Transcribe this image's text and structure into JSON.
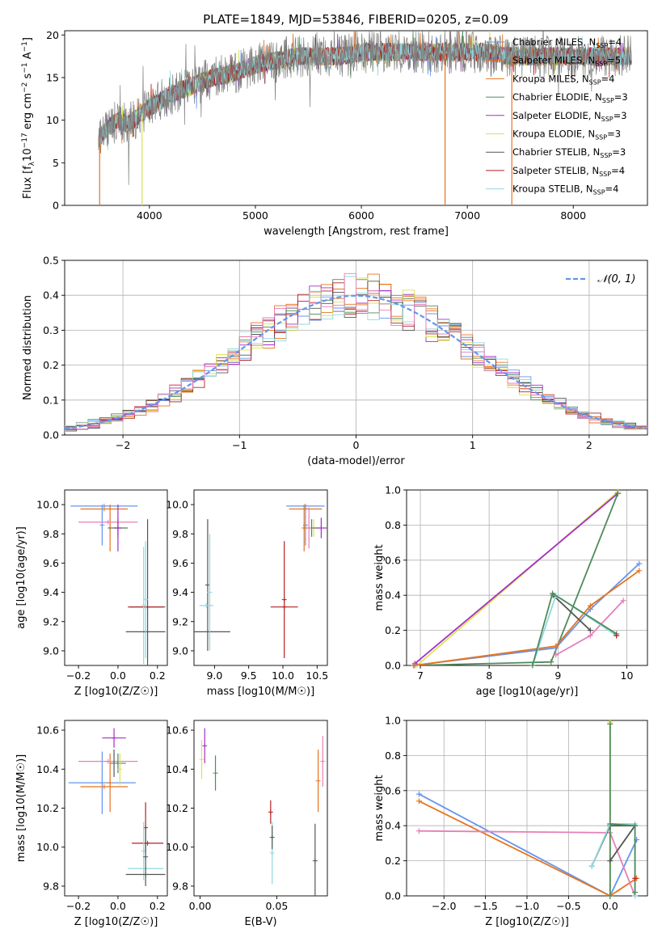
{
  "figure_title": "PLATE=1849, MJD=53846, FIBERID=0205, z=0.09",
  "colors": {
    "blue": "#6495ed",
    "orange": "#e8731d",
    "green": "#4f8a5b",
    "purple": "#a62fc9",
    "yellow": "#d8e450",
    "black": "#555555",
    "red": "#b22222",
    "cyan": "#8fd9e0",
    "pink": "#e67fb7",
    "grey": "#808080",
    "grid": "#b0b0b0"
  },
  "chart_data": [
    {
      "id": "spectrum",
      "type": "line",
      "xlabel": "wavelength [Angstrom, rest frame]",
      "ylabel": "Flux [f_λ10^-17 erg cm^-2 s^-1 A^-1]",
      "xlim": [
        3200,
        8700
      ],
      "ylim": [
        0,
        20.5
      ],
      "xticks": [
        4000,
        5000,
        6000,
        7000,
        8000
      ],
      "yticks": [
        0,
        5,
        10,
        15,
        20
      ],
      "legend_position": "top-right",
      "data_trend": {
        "x": [
          3500,
          3600,
          3700,
          3800,
          3900,
          4000,
          4200,
          4400,
          4600,
          4800,
          5000,
          5200,
          5400,
          5600,
          5800,
          6000,
          6200,
          6400,
          6600,
          6800,
          7000,
          7200,
          7400,
          7600,
          7800,
          8000
        ],
        "y": [
          7.5,
          9,
          10,
          9.5,
          10.5,
          11.5,
          13,
          14,
          15,
          15.5,
          16.5,
          17,
          17.5,
          17.5,
          17.5,
          18,
          18,
          18,
          18,
          18,
          18,
          18,
          17.5,
          17.5,
          17.5,
          17.5
        ]
      },
      "series": [
        {
          "name": "Chabrier MILES, N_SSP=4",
          "color": "blue"
        },
        {
          "name": "Salpeter MILES, N_SSP=5",
          "color": "orange"
        },
        {
          "name": "Kroupa MILES, N_SSP=4",
          "color": "orange"
        },
        {
          "name": "Chabrier ELODIE, N_SSP=3",
          "color": "green"
        },
        {
          "name": "Salpeter ELODIE, N_SSP=3",
          "color": "purple"
        },
        {
          "name": "Kroupa ELODIE, N_SSP=3",
          "color": "yellow"
        },
        {
          "name": "Chabrier STELIB, N_SSP=3",
          "color": "black"
        },
        {
          "name": "Salpeter STELIB, N_SSP=4",
          "color": "red"
        },
        {
          "name": "Kroupa STELIB, N_SSP=4",
          "color": "cyan"
        }
      ]
    },
    {
      "id": "residuals",
      "type": "line",
      "xlabel": "(data-model)/error",
      "ylabel": "Normed distribution",
      "xlim": [
        -2.5,
        2.5
      ],
      "ylim": [
        0,
        0.5
      ],
      "xticks": [
        -2,
        -1,
        0,
        1,
        2
      ],
      "yticks": [
        0.0,
        0.1,
        0.2,
        0.3,
        0.4,
        0.5
      ],
      "grid": true,
      "legend_position": "top-right",
      "legend": "N(0,1)"
    },
    {
      "id": "age_vs_Z",
      "type": "scatter",
      "xlabel": "Z [log10(Z/Z☉)]",
      "ylabel": "age [log10(age/yr)]",
      "xlim": [
        -0.27,
        0.25
      ],
      "ylim": [
        8.9,
        10.1
      ],
      "xticks": [
        -0.2,
        0.0,
        0.2
      ],
      "yticks": [
        9.0,
        9.2,
        9.4,
        9.6,
        9.8,
        10.0
      ],
      "points": [
        {
          "x": -0.07,
          "y": 9.99,
          "xerr": 0.17,
          "yerr": 0.0,
          "color": "blue"
        },
        {
          "x": -0.07,
          "y": 9.97,
          "xerr": 0.12,
          "yerr": 0.0,
          "color": "orange"
        },
        {
          "x": -0.08,
          "y": 9.86,
          "xerr": 0.0,
          "yerr": 0.14,
          "color": "blue"
        },
        {
          "x": -0.04,
          "y": 9.84,
          "xerr": 0.0,
          "yerr": 0.16,
          "color": "orange"
        },
        {
          "x": -0.05,
          "y": 9.88,
          "xerr": 0.15,
          "yerr": 0.0,
          "color": "pink"
        },
        {
          "x": 0.0,
          "y": 9.84,
          "xerr": 0.04,
          "yerr": 0.07,
          "color": "yellow"
        },
        {
          "x": 0.0,
          "y": 9.84,
          "xerr": 0.05,
          "yerr": 0.06,
          "color": "green"
        },
        {
          "x": 0.0,
          "y": 9.84,
          "xerr": 0.02,
          "yerr": 0.16,
          "color": "purple"
        },
        {
          "x": 0.15,
          "y": 9.3,
          "xerr": 0.09,
          "yerr": 0.6,
          "color": "black"
        },
        {
          "x": 0.14,
          "y": 9.3,
          "xerr": 0.09,
          "yerr": 0.0,
          "color": "red"
        },
        {
          "x": 0.13,
          "y": 9.31,
          "xerr": 0.0,
          "yerr": 0.4,
          "color": "cyan"
        },
        {
          "x": 0.14,
          "y": 9.13,
          "xerr": 0.1,
          "yerr": 0.0,
          "color": "black"
        },
        {
          "x": 0.14,
          "y": 9.35,
          "xerr": 0.0,
          "yerr": 0.4,
          "color": "cyan"
        }
      ]
    },
    {
      "id": "age_vs_mass",
      "type": "scatter",
      "xlabel": "mass [log10(M/M☉)]",
      "xlim": [
        8.7,
        10.65
      ],
      "ylim": [
        8.9,
        10.1
      ],
      "xticks": [
        9.0,
        9.5,
        10.0,
        10.5
      ],
      "yticks": [
        9.0,
        9.2,
        9.4,
        9.6,
        9.8,
        10.0
      ],
      "points": [
        {
          "x": 10.33,
          "y": 9.99,
          "xerr": 0.28,
          "yerr": 0.0,
          "color": "blue"
        },
        {
          "x": 10.33,
          "y": 9.97,
          "xerr": 0.24,
          "yerr": 0.0,
          "color": "orange"
        },
        {
          "x": 10.33,
          "y": 9.86,
          "xerr": 0.0,
          "yerr": 0.14,
          "color": "blue"
        },
        {
          "x": 10.31,
          "y": 9.84,
          "xerr": 0.0,
          "yerr": 0.16,
          "color": "orange"
        },
        {
          "x": 10.45,
          "y": 9.84,
          "xerr": 0.1,
          "yerr": 0.06,
          "color": "yellow"
        },
        {
          "x": 10.42,
          "y": 9.84,
          "xerr": 0.08,
          "yerr": 0.06,
          "color": "green"
        },
        {
          "x": 10.56,
          "y": 9.84,
          "xerr": 0.08,
          "yerr": 0.07,
          "color": "purple"
        },
        {
          "x": 10.38,
          "y": 9.84,
          "xerr": 0.0,
          "yerr": 0.14,
          "color": "pink"
        },
        {
          "x": 8.9,
          "y": 9.45,
          "xerr": 0.0,
          "yerr": 0.45,
          "color": "black"
        },
        {
          "x": 8.93,
          "y": 9.13,
          "xerr": 0.3,
          "yerr": 0.0,
          "color": "black"
        },
        {
          "x": 8.93,
          "y": 9.4,
          "xerr": 0.0,
          "yerr": 0.4,
          "color": "cyan"
        },
        {
          "x": 8.88,
          "y": 9.31,
          "xerr": 0.1,
          "yerr": 0.0,
          "color": "cyan"
        },
        {
          "x": 10.02,
          "y": 9.3,
          "xerr": 0.2,
          "yerr": 0.0,
          "color": "red"
        },
        {
          "x": 10.02,
          "y": 9.35,
          "xerr": 0.0,
          "yerr": 0.4,
          "color": "red"
        }
      ]
    },
    {
      "id": "weight_vs_age",
      "type": "line",
      "xlabel": "age [log10(age/yr)]",
      "ylabel": "mass weight",
      "xlim": [
        6.8,
        10.3
      ],
      "ylim": [
        0,
        1.0
      ],
      "xticks": [
        7,
        8,
        9,
        10
      ],
      "yticks": [
        0.0,
        0.2,
        0.4,
        0.6,
        0.8,
        1.0
      ],
      "grid": true,
      "series": [
        {
          "color": "yellow",
          "x": [
            6.95,
            9.87
          ],
          "y": [
            0.0,
            0.99
          ]
        },
        {
          "color": "purple",
          "x": [
            6.92,
            9.87
          ],
          "y": [
            0.01,
            0.98
          ]
        },
        {
          "color": "green",
          "x": [
            6.9,
            8.9,
            9.87
          ],
          "y": [
            0.0,
            0.02,
            0.98
          ]
        },
        {
          "color": "blue",
          "x": [
            6.9,
            8.97,
            9.47,
            10.18
          ],
          "y": [
            0.0,
            0.1,
            0.32,
            0.58
          ]
        },
        {
          "color": "orange",
          "x": [
            6.92,
            8.97,
            9.47,
            10.18
          ],
          "y": [
            0.0,
            0.11,
            0.34,
            0.54
          ]
        },
        {
          "color": "black",
          "x": [
            8.93,
            9.47
          ],
          "y": [
            0.4,
            0.2
          ]
        },
        {
          "color": "pink",
          "x": [
            8.97,
            9.47,
            9.95
          ],
          "y": [
            0.06,
            0.17,
            0.37
          ]
        },
        {
          "color": "cyan",
          "x": [
            8.63,
            8.97,
            9.85
          ],
          "y": [
            0.0,
            0.4,
            0.17
          ]
        },
        {
          "color": "green",
          "x": [
            8.63,
            8.92,
            9.85
          ],
          "y": [
            0.0,
            0.41,
            0.18
          ]
        },
        {
          "color": "red",
          "x": [
            9.85
          ],
          "y": [
            0.17
          ]
        }
      ]
    },
    {
      "id": "mass_vs_Z",
      "type": "scatter",
      "xlabel": "Z [log10(Z/Z☉)]",
      "ylabel": "mass [log10(M/M☉)]",
      "xlim": [
        -0.27,
        0.25
      ],
      "ylim": [
        9.75,
        10.65
      ],
      "xticks": [
        -0.2,
        0.0,
        0.2
      ],
      "yticks": [
        9.8,
        10.0,
        10.2,
        10.4,
        10.6
      ],
      "points": [
        {
          "x": -0.08,
          "y": 10.33,
          "xerr": 0.17,
          "yerr": 0.16,
          "color": "blue"
        },
        {
          "x": -0.07,
          "y": 10.31,
          "xerr": 0.12,
          "yerr": 0.0,
          "color": "orange"
        },
        {
          "x": -0.04,
          "y": 10.33,
          "xerr": 0.0,
          "yerr": 0.15,
          "color": "orange"
        },
        {
          "x": -0.05,
          "y": 10.44,
          "xerr": 0.15,
          "yerr": 0.0,
          "color": "pink"
        },
        {
          "x": -0.02,
          "y": 10.43,
          "xerr": 0.0,
          "yerr": 0.07,
          "color": "black"
        },
        {
          "x": 0.0,
          "y": 10.43,
          "xerr": 0.04,
          "yerr": 0.05,
          "color": "green"
        },
        {
          "x": 0.01,
          "y": 10.4,
          "xerr": 0.0,
          "yerr": 0.08,
          "color": "yellow"
        },
        {
          "x": -0.02,
          "y": 10.56,
          "xerr": 0.06,
          "yerr": 0.05,
          "color": "purple"
        },
        {
          "x": 0.15,
          "y": 10.02,
          "xerr": 0.08,
          "yerr": 0.0,
          "color": "red"
        },
        {
          "x": 0.14,
          "y": 10.1,
          "xerr": 0.0,
          "yerr": 0.13,
          "color": "red"
        },
        {
          "x": 0.14,
          "y": 9.89,
          "xerr": 0.09,
          "yerr": 0.0,
          "color": "cyan"
        },
        {
          "x": 0.13,
          "y": 9.98,
          "xerr": 0.0,
          "yerr": 0.15,
          "color": "cyan"
        },
        {
          "x": 0.14,
          "y": 9.86,
          "xerr": 0.1,
          "yerr": 0.0,
          "color": "black"
        },
        {
          "x": 0.14,
          "y": 9.95,
          "xerr": 0.0,
          "yerr": 0.15,
          "color": "black"
        }
      ]
    },
    {
      "id": "mass_vs_EBV",
      "type": "scatter",
      "xlabel": "E(B-V)",
      "xlim": [
        -0.004,
        0.083
      ],
      "ylim": [
        9.75,
        10.65
      ],
      "xticks": [
        0.0,
        0.05
      ],
      "yticks": [
        9.8,
        10.0,
        10.2,
        10.4,
        10.6
      ],
      "points": [
        {
          "x": 0.001,
          "y": 10.45,
          "xerr": 0.0,
          "yerr": 0.1,
          "color": "yellow"
        },
        {
          "x": 0.003,
          "y": 10.52,
          "xerr": 0.0,
          "yerr": 0.09,
          "color": "purple"
        },
        {
          "x": 0.01,
          "y": 10.38,
          "xerr": 0.0,
          "yerr": 0.09,
          "color": "green"
        },
        {
          "x": 0.046,
          "y": 10.18,
          "xerr": 0.0,
          "yerr": 0.06,
          "color": "red"
        },
        {
          "x": 0.047,
          "y": 9.97,
          "xerr": 0.0,
          "yerr": 0.16,
          "color": "cyan"
        },
        {
          "x": 0.047,
          "y": 10.05,
          "xerr": 0.0,
          "yerr": 0.06,
          "color": "black"
        },
        {
          "x": 0.075,
          "y": 9.93,
          "xerr": 0.0,
          "yerr": 0.19,
          "color": "black"
        },
        {
          "x": 0.077,
          "y": 10.34,
          "xerr": 0.0,
          "yerr": 0.16,
          "color": "orange"
        },
        {
          "x": 0.08,
          "y": 10.44,
          "xerr": 0.0,
          "yerr": 0.13,
          "color": "pink"
        }
      ]
    },
    {
      "id": "weight_vs_Z",
      "type": "line",
      "xlabel": "Z [log10(Z/Z☉)]",
      "ylabel": "mass weight",
      "xlim": [
        -2.45,
        0.45
      ],
      "ylim": [
        0,
        1.0
      ],
      "xticks": [
        -2.0,
        -1.5,
        -1.0,
        -0.5,
        0.0
      ],
      "yticks": [
        0.0,
        0.2,
        0.4,
        0.6,
        0.8,
        1.0
      ],
      "grid": true,
      "series": [
        {
          "color": "blue",
          "x": [
            -2.3,
            0.0,
            0.32
          ],
          "y": [
            0.58,
            0.0,
            0.32
          ]
        },
        {
          "color": "orange",
          "x": [
            -2.3,
            0.0,
            0.32
          ],
          "y": [
            0.54,
            0.0,
            0.1
          ]
        },
        {
          "color": "pink",
          "x": [
            -2.3,
            0.0,
            0.3
          ],
          "y": [
            0.37,
            0.36,
            0.0
          ]
        },
        {
          "color": "yellow",
          "x": [
            0.0,
            0.0
          ],
          "y": [
            0.0,
            0.99
          ]
        },
        {
          "color": "green",
          "x": [
            0.0,
            0.0
          ],
          "y": [
            0.0,
            0.98
          ]
        },
        {
          "color": "black",
          "x": [
            -0.22,
            0.0,
            0.3,
            0.0,
            0.3
          ],
          "y": [
            0.17,
            0.4,
            0.4,
            0.2,
            0.4
          ]
        },
        {
          "color": "cyan",
          "x": [
            -0.22,
            0.0,
            0.3,
            0.3
          ],
          "y": [
            0.17,
            0.41,
            0.41,
            0.0
          ]
        },
        {
          "color": "green",
          "x": [
            0.0,
            0.3,
            0.3
          ],
          "y": [
            0.41,
            0.4,
            0.02
          ]
        },
        {
          "color": "red",
          "x": [
            0.3
          ],
          "y": [
            0.1
          ]
        }
      ]
    }
  ]
}
